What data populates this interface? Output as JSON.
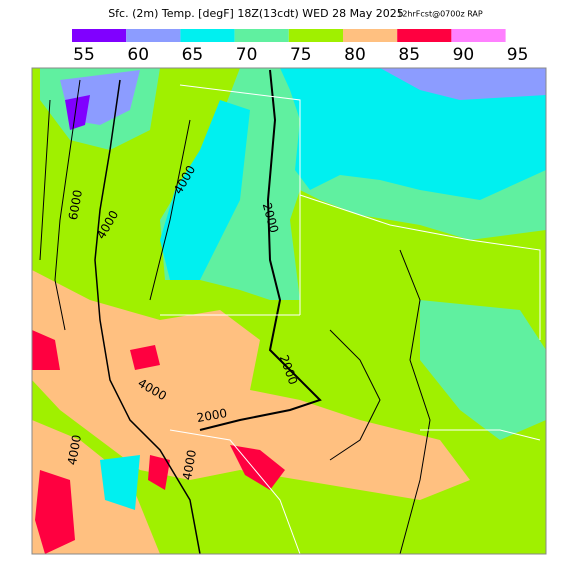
{
  "header": {
    "title": "Sfc. (2m) Temp. [degF] 18Z(13cdt) WED 28 May 2025",
    "run": "12hrFcst@0700z RAP"
  },
  "colorbar": {
    "colors": [
      "#8000ff",
      "#8c9cff",
      "#00f0f0",
      "#60f0a0",
      "#a0f000",
      "#ffc080",
      "#ff0040",
      "#ff80ff"
    ],
    "labels": [
      "55",
      "60",
      "65",
      "70",
      "75",
      "80",
      "85",
      "90",
      "95"
    ]
  },
  "contour_labels": [
    "6000",
    "4000",
    "4000",
    "2000",
    "2000",
    "4000",
    "2000",
    "4000",
    "4000"
  ]
}
